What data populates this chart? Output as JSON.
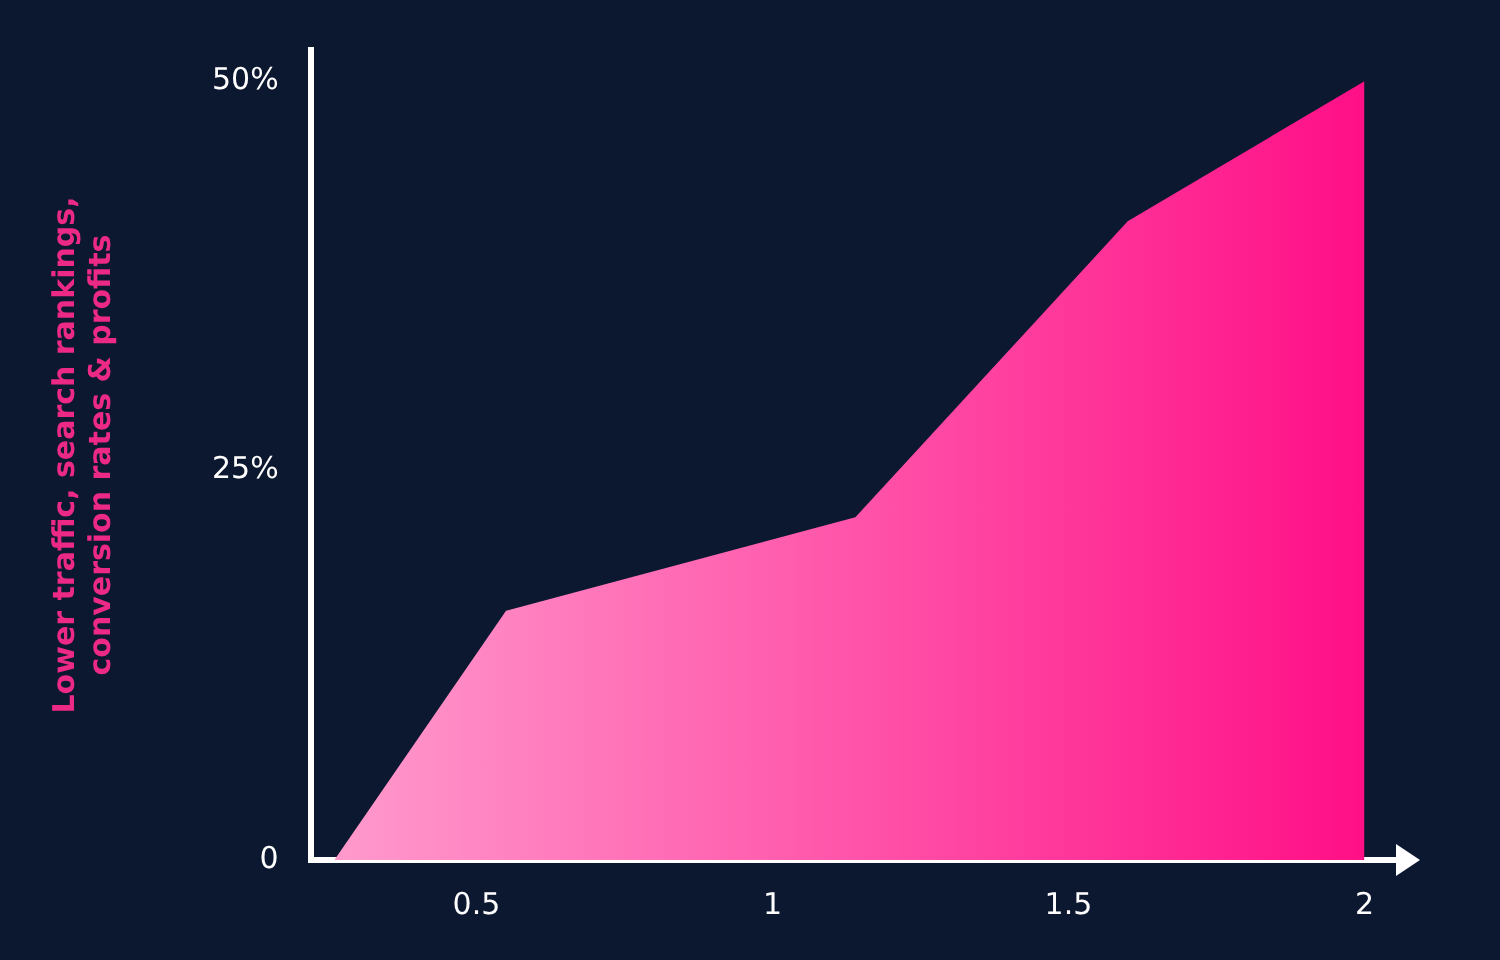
{
  "chart_data": {
    "type": "area",
    "ylabel": "Lower traffic, search rankings, conversion rates & profits",
    "x": [
      0.26,
      0.55,
      1.14,
      1.6,
      2.0
    ],
    "series": [
      {
        "color": "#ff0a84",
        "values": [
          0,
          16,
          22,
          41,
          50
        ]
      }
    ],
    "xlim": [
      0.22,
      2.06
    ],
    "xticks": [
      0.5,
      1,
      1.5,
      2
    ],
    "ylim": [
      0,
      52
    ],
    "yticks": [
      {
        "value": 0,
        "label": "0"
      },
      {
        "value": 25,
        "label": "25%"
      },
      {
        "value": 50,
        "label": "50%"
      }
    ],
    "grid": false,
    "legend": false,
    "marker": "none"
  }
}
